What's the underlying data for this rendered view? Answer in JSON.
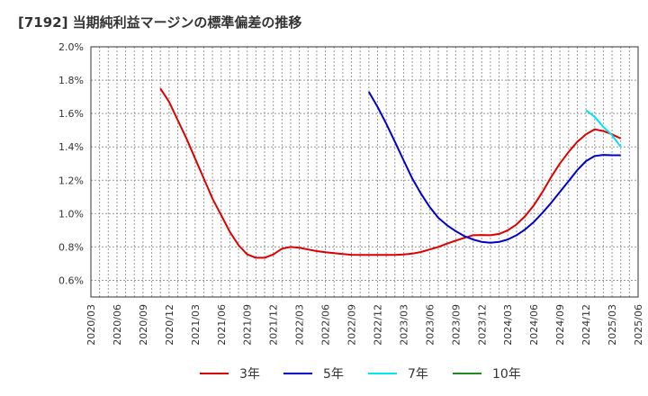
{
  "chart_data": {
    "type": "line",
    "title": "[7192]  当期純利益マージンの標準偏差の推移",
    "xlabel": "",
    "ylabel": "",
    "ylim": [
      0.5,
      2.0
    ],
    "y_ticks": [
      0.6,
      0.8,
      1.0,
      1.2,
      1.4,
      1.6,
      1.8,
      2.0
    ],
    "y_tick_labels": [
      "0.6%",
      "0.8%",
      "1.0%",
      "1.2%",
      "1.4%",
      "1.6%",
      "1.8%",
      "2.0%"
    ],
    "x_tick_labels": [
      "2020/03",
      "2020/06",
      "2020/09",
      "2020/12",
      "2021/03",
      "2021/06",
      "2021/09",
      "2021/12",
      "2022/03",
      "2022/06",
      "2022/09",
      "2022/12",
      "2023/03",
      "2023/06",
      "2023/09",
      "2023/12",
      "2024/03",
      "2024/06",
      "2024/09",
      "2024/12",
      "2025/03",
      "2025/06"
    ],
    "grid": true,
    "legend_position": "bottom",
    "series": [
      {
        "name": "3年",
        "color": "#dd0000",
        "points": [
          [
            "2020/11",
            1.75
          ],
          [
            "2020/12",
            1.67
          ],
          [
            "2021/01",
            1.56
          ],
          [
            "2021/02",
            1.45
          ],
          [
            "2021/03",
            1.33
          ],
          [
            "2021/04",
            1.21
          ],
          [
            "2021/05",
            1.09
          ],
          [
            "2021/06",
            0.99
          ],
          [
            "2021/07",
            0.89
          ],
          [
            "2021/08",
            0.81
          ],
          [
            "2021/09",
            0.755
          ],
          [
            "2021/10",
            0.735
          ],
          [
            "2021/11",
            0.735
          ],
          [
            "2021/12",
            0.755
          ],
          [
            "2022/01",
            0.79
          ],
          [
            "2022/02",
            0.8
          ],
          [
            "2022/03",
            0.795
          ],
          [
            "2022/04",
            0.785
          ],
          [
            "2022/05",
            0.775
          ],
          [
            "2022/06",
            0.768
          ],
          [
            "2022/07",
            0.763
          ],
          [
            "2022/08",
            0.758
          ],
          [
            "2022/09",
            0.753
          ],
          [
            "2022/10",
            0.752
          ],
          [
            "2022/11",
            0.752
          ],
          [
            "2022/12",
            0.752
          ],
          [
            "2023/01",
            0.752
          ],
          [
            "2023/02",
            0.752
          ],
          [
            "2023/03",
            0.755
          ],
          [
            "2023/04",
            0.76
          ],
          [
            "2023/05",
            0.77
          ],
          [
            "2023/06",
            0.785
          ],
          [
            "2023/07",
            0.8
          ],
          [
            "2023/08",
            0.82
          ],
          [
            "2023/09",
            0.838
          ],
          [
            "2023/10",
            0.855
          ],
          [
            "2023/11",
            0.87
          ],
          [
            "2023/12",
            0.872
          ],
          [
            "2024/01",
            0.87
          ],
          [
            "2024/02",
            0.878
          ],
          [
            "2024/03",
            0.9
          ],
          [
            "2024/04",
            0.935
          ],
          [
            "2024/05",
            0.985
          ],
          [
            "2024/06",
            1.05
          ],
          [
            "2024/07",
            1.13
          ],
          [
            "2024/08",
            1.22
          ],
          [
            "2024/09",
            1.3
          ],
          [
            "2024/10",
            1.37
          ],
          [
            "2024/11",
            1.43
          ],
          [
            "2024/12",
            1.475
          ],
          [
            "2025/01",
            1.505
          ],
          [
            "2025/02",
            1.495
          ],
          [
            "2025/03",
            1.475
          ],
          [
            "2025/04",
            1.45
          ]
        ]
      },
      {
        "name": "5年",
        "color": "#0000cc",
        "points": [
          [
            "2022/11",
            1.73
          ],
          [
            "2022/12",
            1.64
          ],
          [
            "2023/01",
            1.54
          ],
          [
            "2023/02",
            1.43
          ],
          [
            "2023/03",
            1.32
          ],
          [
            "2023/04",
            1.21
          ],
          [
            "2023/05",
            1.12
          ],
          [
            "2023/06",
            1.04
          ],
          [
            "2023/07",
            0.975
          ],
          [
            "2023/08",
            0.93
          ],
          [
            "2023/09",
            0.895
          ],
          [
            "2023/10",
            0.865
          ],
          [
            "2023/11",
            0.845
          ],
          [
            "2023/12",
            0.83
          ],
          [
            "2024/01",
            0.825
          ],
          [
            "2024/02",
            0.83
          ],
          [
            "2024/03",
            0.845
          ],
          [
            "2024/04",
            0.87
          ],
          [
            "2024/05",
            0.905
          ],
          [
            "2024/06",
            0.95
          ],
          [
            "2024/07",
            1.005
          ],
          [
            "2024/08",
            1.065
          ],
          [
            "2024/09",
            1.13
          ],
          [
            "2024/10",
            1.195
          ],
          [
            "2024/11",
            1.26
          ],
          [
            "2024/12",
            1.315
          ],
          [
            "2025/01",
            1.345
          ],
          [
            "2025/02",
            1.352
          ],
          [
            "2025/03",
            1.35
          ],
          [
            "2025/04",
            1.35
          ]
        ]
      },
      {
        "name": "7年",
        "color": "#00e5ee",
        "points": [
          [
            "2024/12",
            1.62
          ],
          [
            "2025/01",
            1.58
          ],
          [
            "2025/02",
            1.52
          ],
          [
            "2025/03",
            1.47
          ],
          [
            "2025/04",
            1.4
          ]
        ]
      },
      {
        "name": "10年",
        "color": "#228b22",
        "points": []
      }
    ]
  }
}
